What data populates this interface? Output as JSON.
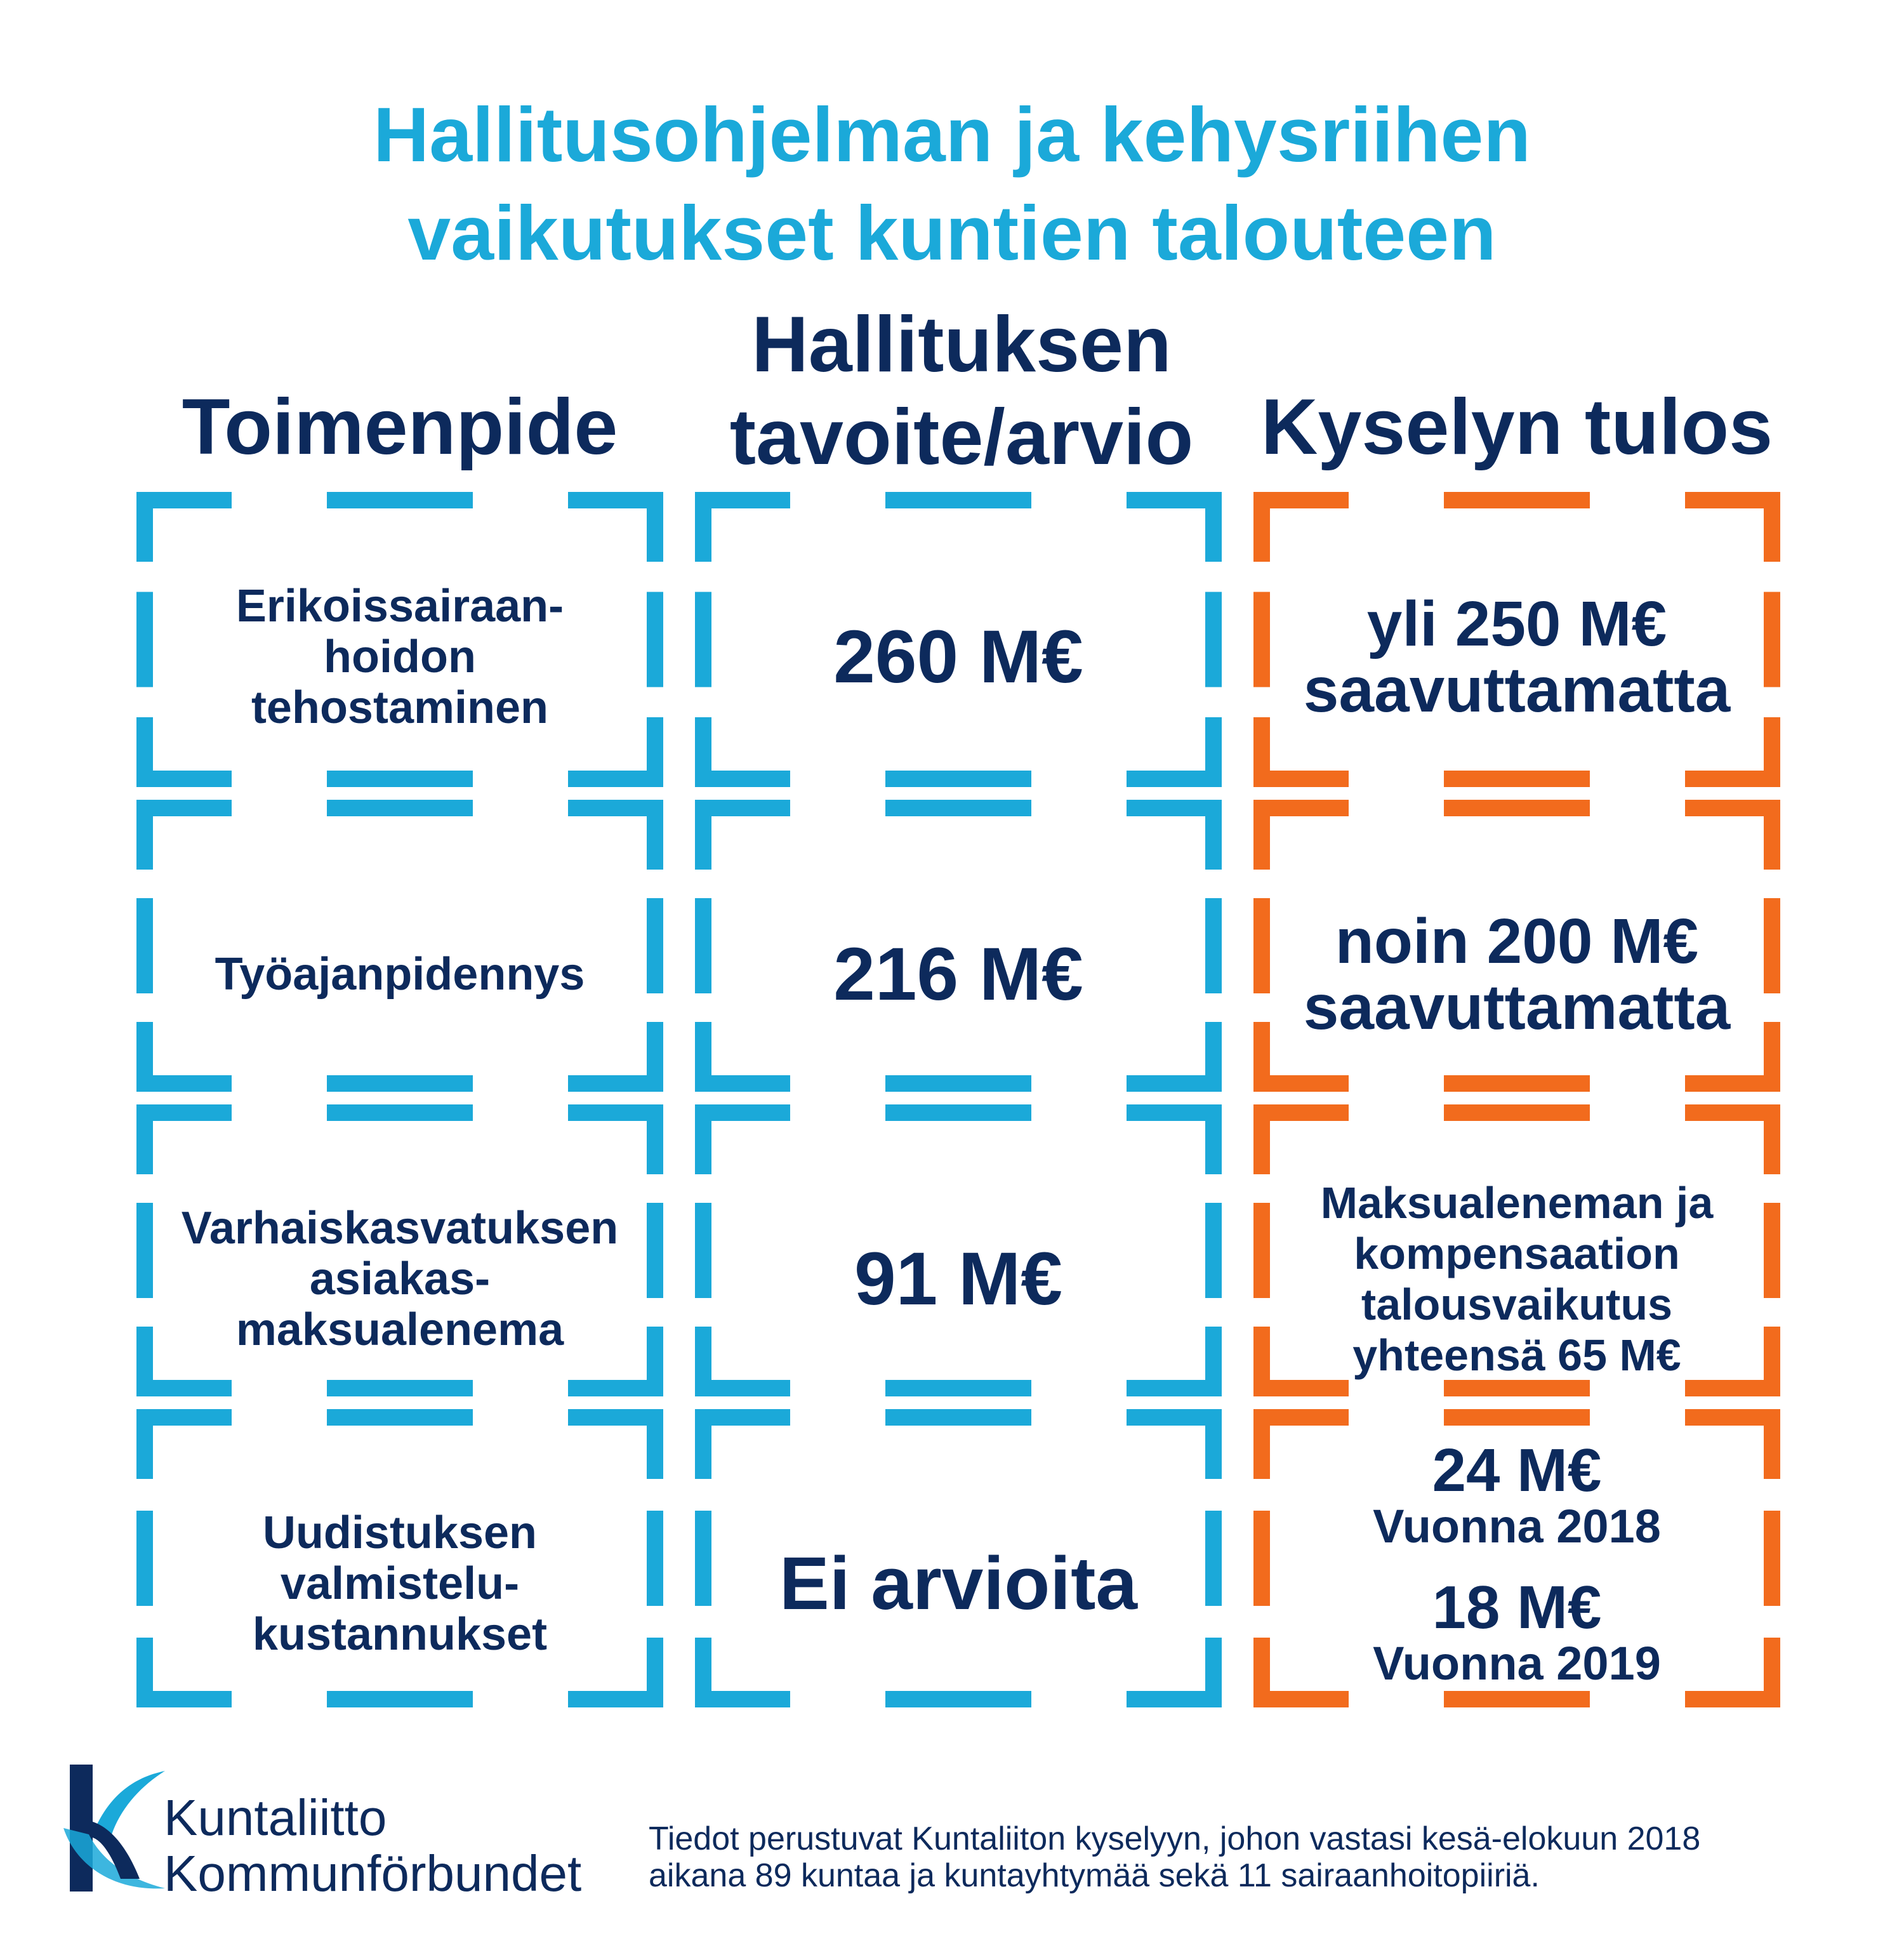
{
  "title": {
    "line1": "Hallitusohjelman ja kehysriihen",
    "line2": "vaikutukset kuntien talouteen"
  },
  "columns": {
    "measure": {
      "line1": "Toimenpide"
    },
    "target": {
      "line1": "Hallituksen",
      "line2": "tavoite/arvio"
    },
    "result": {
      "line1": "Kyselyn tulos"
    }
  },
  "rows": [
    {
      "measure": [
        "Erikoissairaan-",
        "hoidon",
        "tehostaminen"
      ],
      "target": "260 M€",
      "result": [
        "yli 250 M€",
        "saavuttamatta"
      ]
    },
    {
      "measure": [
        "Työajanpidennys"
      ],
      "target": "216 M€",
      "result": [
        "noin 200 M€",
        "saavuttamatta"
      ]
    },
    {
      "measure": [
        "Varhaiskasvatuksen",
        "asiakas-",
        "maksualenema"
      ],
      "target": "91 M€",
      "result": [
        "Maksualeneman ja",
        "kompensaation",
        "talousvaikutus",
        "yhteensä 65 M€"
      ]
    },
    {
      "measure": [
        "Uudistuksen",
        "valmistelu-",
        "kustannukset"
      ],
      "target": "Ei arvioita",
      "result_years": [
        {
          "amount": "24 M€",
          "year": "Vuonna 2018"
        },
        {
          "amount": "18 M€",
          "year": "Vuonna 2019"
        }
      ]
    }
  ],
  "logo": {
    "line1": "Kuntaliitto",
    "line2": "Kommunförbundet"
  },
  "footer": {
    "line1": "Tiedot perustuvat Kuntaliiton kyselyyn, johon vastasi kesä-elokuun 2018",
    "line2": "aikana 89 kuntaa ja kuntayhtymää sekä 11 sairaanhoitopiiriä."
  },
  "colors": {
    "blue": "#1ba9d9",
    "orange": "#f26b1d",
    "navy": "#0d2a5c"
  }
}
